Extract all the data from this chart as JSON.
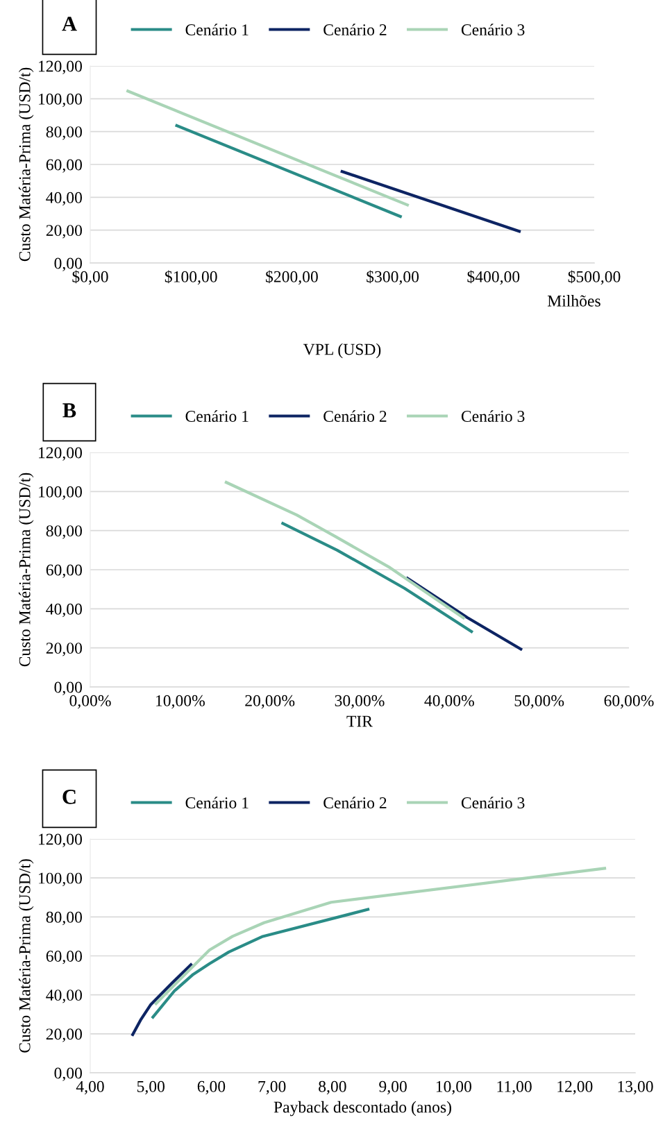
{
  "chart_data": [
    {
      "type": "line",
      "xlabel": "VPL (USD)",
      "ylabel": "Custo Matéria-Prima (USD/t)",
      "annotations": [
        "A",
        "Milhões"
      ],
      "legend": "top",
      "grid": "y",
      "xlim": [
        0,
        500
      ],
      "xticks": [
        {
          "value": 0,
          "label": "$0,00"
        },
        {
          "value": 100,
          "label": "$100,00"
        },
        {
          "value": 200,
          "label": "$200,00"
        },
        {
          "value": 300,
          "label": "$300,00"
        },
        {
          "value": 400,
          "label": "$400,00"
        },
        {
          "value": 500,
          "label": "$500,00"
        }
      ],
      "ylim": [
        0,
        120
      ],
      "yticks": [
        {
          "value": 0,
          "label": "0,00"
        },
        {
          "value": 20,
          "label": "20,00"
        },
        {
          "value": 40,
          "label": "40,00"
        },
        {
          "value": 60,
          "label": "60,00"
        },
        {
          "value": 80,
          "label": "80,00"
        },
        {
          "value": 100,
          "label": "100,00"
        },
        {
          "value": 120,
          "label": "120,00"
        }
      ],
      "series": [
        {
          "name": "Cenário 1",
          "color": "#2a8c87",
          "x": [
            84.5,
            309
          ],
          "values": [
            84,
            28
          ]
        },
        {
          "name": "Cenário 2",
          "color": "#0d2463",
          "x": [
            248.5,
            427
          ],
          "values": [
            56,
            19
          ]
        },
        {
          "name": "Cenário 3",
          "color": "#a9d4b6",
          "x": [
            36,
            316
          ],
          "values": [
            105,
            35
          ]
        }
      ]
    },
    {
      "type": "line",
      "xlabel": "TIR",
      "ylabel": "Custo Matéria-Prima (USD/t)",
      "annotations": [
        "B"
      ],
      "legend": "top",
      "grid": "y",
      "xlim": [
        0,
        60
      ],
      "xticks": [
        {
          "value": 0,
          "label": "0,00%"
        },
        {
          "value": 10,
          "label": "10,00%"
        },
        {
          "value": 20,
          "label": "20,00%"
        },
        {
          "value": 30,
          "label": "30,00%"
        },
        {
          "value": 40,
          "label": "40,00%"
        },
        {
          "value": 50,
          "label": "50,00%"
        },
        {
          "value": 60,
          "label": "60,00%"
        }
      ],
      "ylim": [
        0,
        120
      ],
      "yticks": [
        {
          "value": 0,
          "label": "0,00"
        },
        {
          "value": 20,
          "label": "20,00"
        },
        {
          "value": 40,
          "label": "40,00"
        },
        {
          "value": 60,
          "label": "60,00"
        },
        {
          "value": 80,
          "label": "80,00"
        },
        {
          "value": 100,
          "label": "100,00"
        },
        {
          "value": 120,
          "label": "120,00"
        }
      ],
      "series": [
        {
          "name": "Cenário 1",
          "color": "#2a8c87",
          "x": [
            21.3,
            27.5,
            35.0,
            42.6
          ],
          "values": [
            84,
            70,
            50.5,
            28
          ]
        },
        {
          "name": "Cenário 2",
          "color": "#0d2463",
          "x": [
            35.2,
            42.0,
            48.1
          ],
          "values": [
            56,
            35.5,
            19
          ]
        },
        {
          "name": "Cenário 3",
          "color": "#a9d4b6",
          "x": [
            15.0,
            23.0,
            27.3,
            33.4,
            41.7
          ],
          "values": [
            105,
            88,
            77,
            61,
            35
          ]
        }
      ]
    },
    {
      "type": "line",
      "xlabel": "Payback descontado (anos)",
      "ylabel": "Custo Matéria-Prima (USD/t)",
      "annotations": [
        "C"
      ],
      "legend": "top",
      "grid": "y",
      "xlim": [
        4,
        13
      ],
      "xticks": [
        {
          "value": 4,
          "label": "4,00"
        },
        {
          "value": 5,
          "label": "5,00"
        },
        {
          "value": 6,
          "label": "6,00"
        },
        {
          "value": 7,
          "label": "7,00"
        },
        {
          "value": 8,
          "label": "8,00"
        },
        {
          "value": 9,
          "label": "9,00"
        },
        {
          "value": 10,
          "label": "10,00"
        },
        {
          "value": 11,
          "label": "11,00"
        },
        {
          "value": 12,
          "label": "12,00"
        },
        {
          "value": 13,
          "label": "13,00"
        }
      ],
      "ylim": [
        0,
        120
      ],
      "yticks": [
        {
          "value": 0,
          "label": "0,00"
        },
        {
          "value": 20,
          "label": "20,00"
        },
        {
          "value": 40,
          "label": "40,00"
        },
        {
          "value": 60,
          "label": "60,00"
        },
        {
          "value": 80,
          "label": "80,00"
        },
        {
          "value": 100,
          "label": "100,00"
        },
        {
          "value": 120,
          "label": "120,00"
        }
      ],
      "series": [
        {
          "name": "Cenário 1",
          "color": "#2a8c87",
          "x": [
            5.02,
            5.39,
            5.7,
            5.97,
            6.29,
            6.85,
            8.61
          ],
          "values": [
            28,
            42,
            50.5,
            56,
            62,
            70,
            84
          ]
        },
        {
          "name": "Cenário 2",
          "color": "#0d2463",
          "x": [
            4.69,
            4.83,
            5.0,
            5.35,
            5.68
          ],
          "values": [
            19,
            27,
            35,
            46,
            56
          ]
        },
        {
          "name": "Cenário 3",
          "color": "#a9d4b6",
          "x": [
            5.07,
            5.42,
            5.97,
            6.35,
            6.87,
            7.98,
            12.52
          ],
          "values": [
            35,
            46,
            63,
            70,
            77,
            87.5,
            105
          ]
        }
      ]
    }
  ]
}
